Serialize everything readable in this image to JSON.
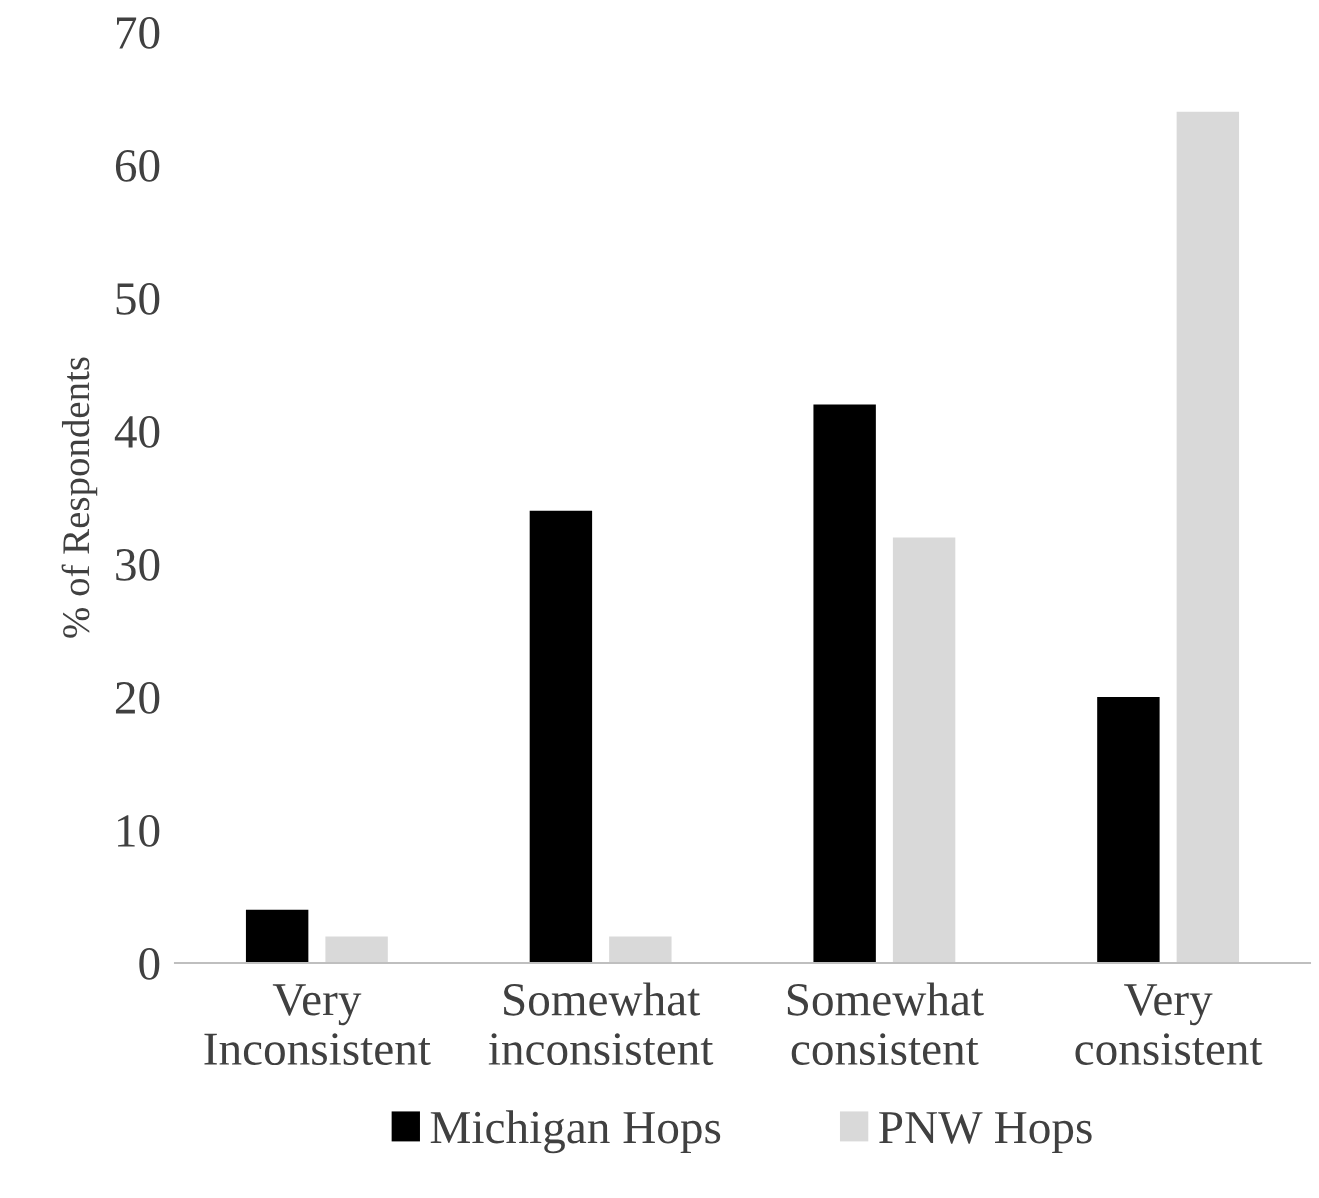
{
  "chart_data": {
    "type": "bar",
    "ylabel": "% of Respondents",
    "categories": [
      "Very\nInconsistent",
      "Somewhat\ninconsistent",
      "Somewhat\nconsistent",
      "Very\nconsistent"
    ],
    "series": [
      {
        "name": "Michigan Hops",
        "color": "#000000",
        "values": [
          4,
          34,
          42,
          20
        ]
      },
      {
        "name": "PNW Hops",
        "color": "#d9d9d9",
        "values": [
          2,
          2,
          32,
          64
        ]
      }
    ],
    "ylim": [
      0,
      70
    ],
    "yticks": [
      0,
      10,
      20,
      30,
      40,
      50,
      60,
      70
    ],
    "grid": false,
    "legend": "bottom"
  }
}
